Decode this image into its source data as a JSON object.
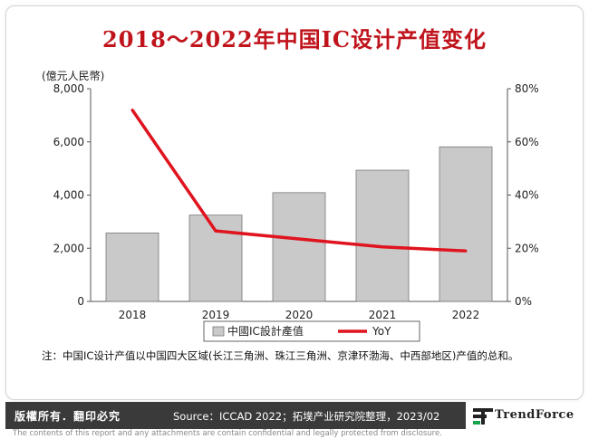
{
  "title": "2018～2022年中国IC设计产值变化",
  "unit_label": "(億元人民幣)",
  "chart_data": {
    "type": "bar",
    "categories": [
      "2018",
      "2019",
      "2020",
      "2021",
      "2022"
    ],
    "series": [
      {
        "name": "中國IC設計產值",
        "type": "bar",
        "axis": "left",
        "values": [
          2576,
          3246,
          4090,
          4934,
          5814
        ],
        "color": "#c9c9c9"
      },
      {
        "name": "YoY",
        "type": "line",
        "axis": "right",
        "values": [
          72,
          26.5,
          23.5,
          20.5,
          19
        ],
        "color": "#e0141e"
      }
    ],
    "y_left": {
      "min": 0,
      "max": 8000,
      "ticks": [
        "0",
        "2,000",
        "4,000",
        "6,000",
        "8,000"
      ]
    },
    "y_right": {
      "min": 0,
      "max": 80,
      "ticks": [
        "0%",
        "20%",
        "40%",
        "60%",
        "80%"
      ]
    },
    "legend": "bottom",
    "grid": false
  },
  "note": "注：中国IC设计产值以中国四大区域(长江三角洲、珠江三角洲、京津环渤海、中西部地区)产值的总和。",
  "footer": {
    "rights": "版權所有．翻印必究",
    "source": "Source：ICCAD 2022；拓墣产业研究院整理，2023/02",
    "logo_text": "TrendForce"
  },
  "disclaimer": "The contents of this report and any attachments are contain confidential and legally protected from disclosure.",
  "colors": {
    "title": "#c0141c",
    "bar": "#c9c9c9",
    "line": "#e0141e",
    "footer_bg": "#3a3a3a"
  }
}
